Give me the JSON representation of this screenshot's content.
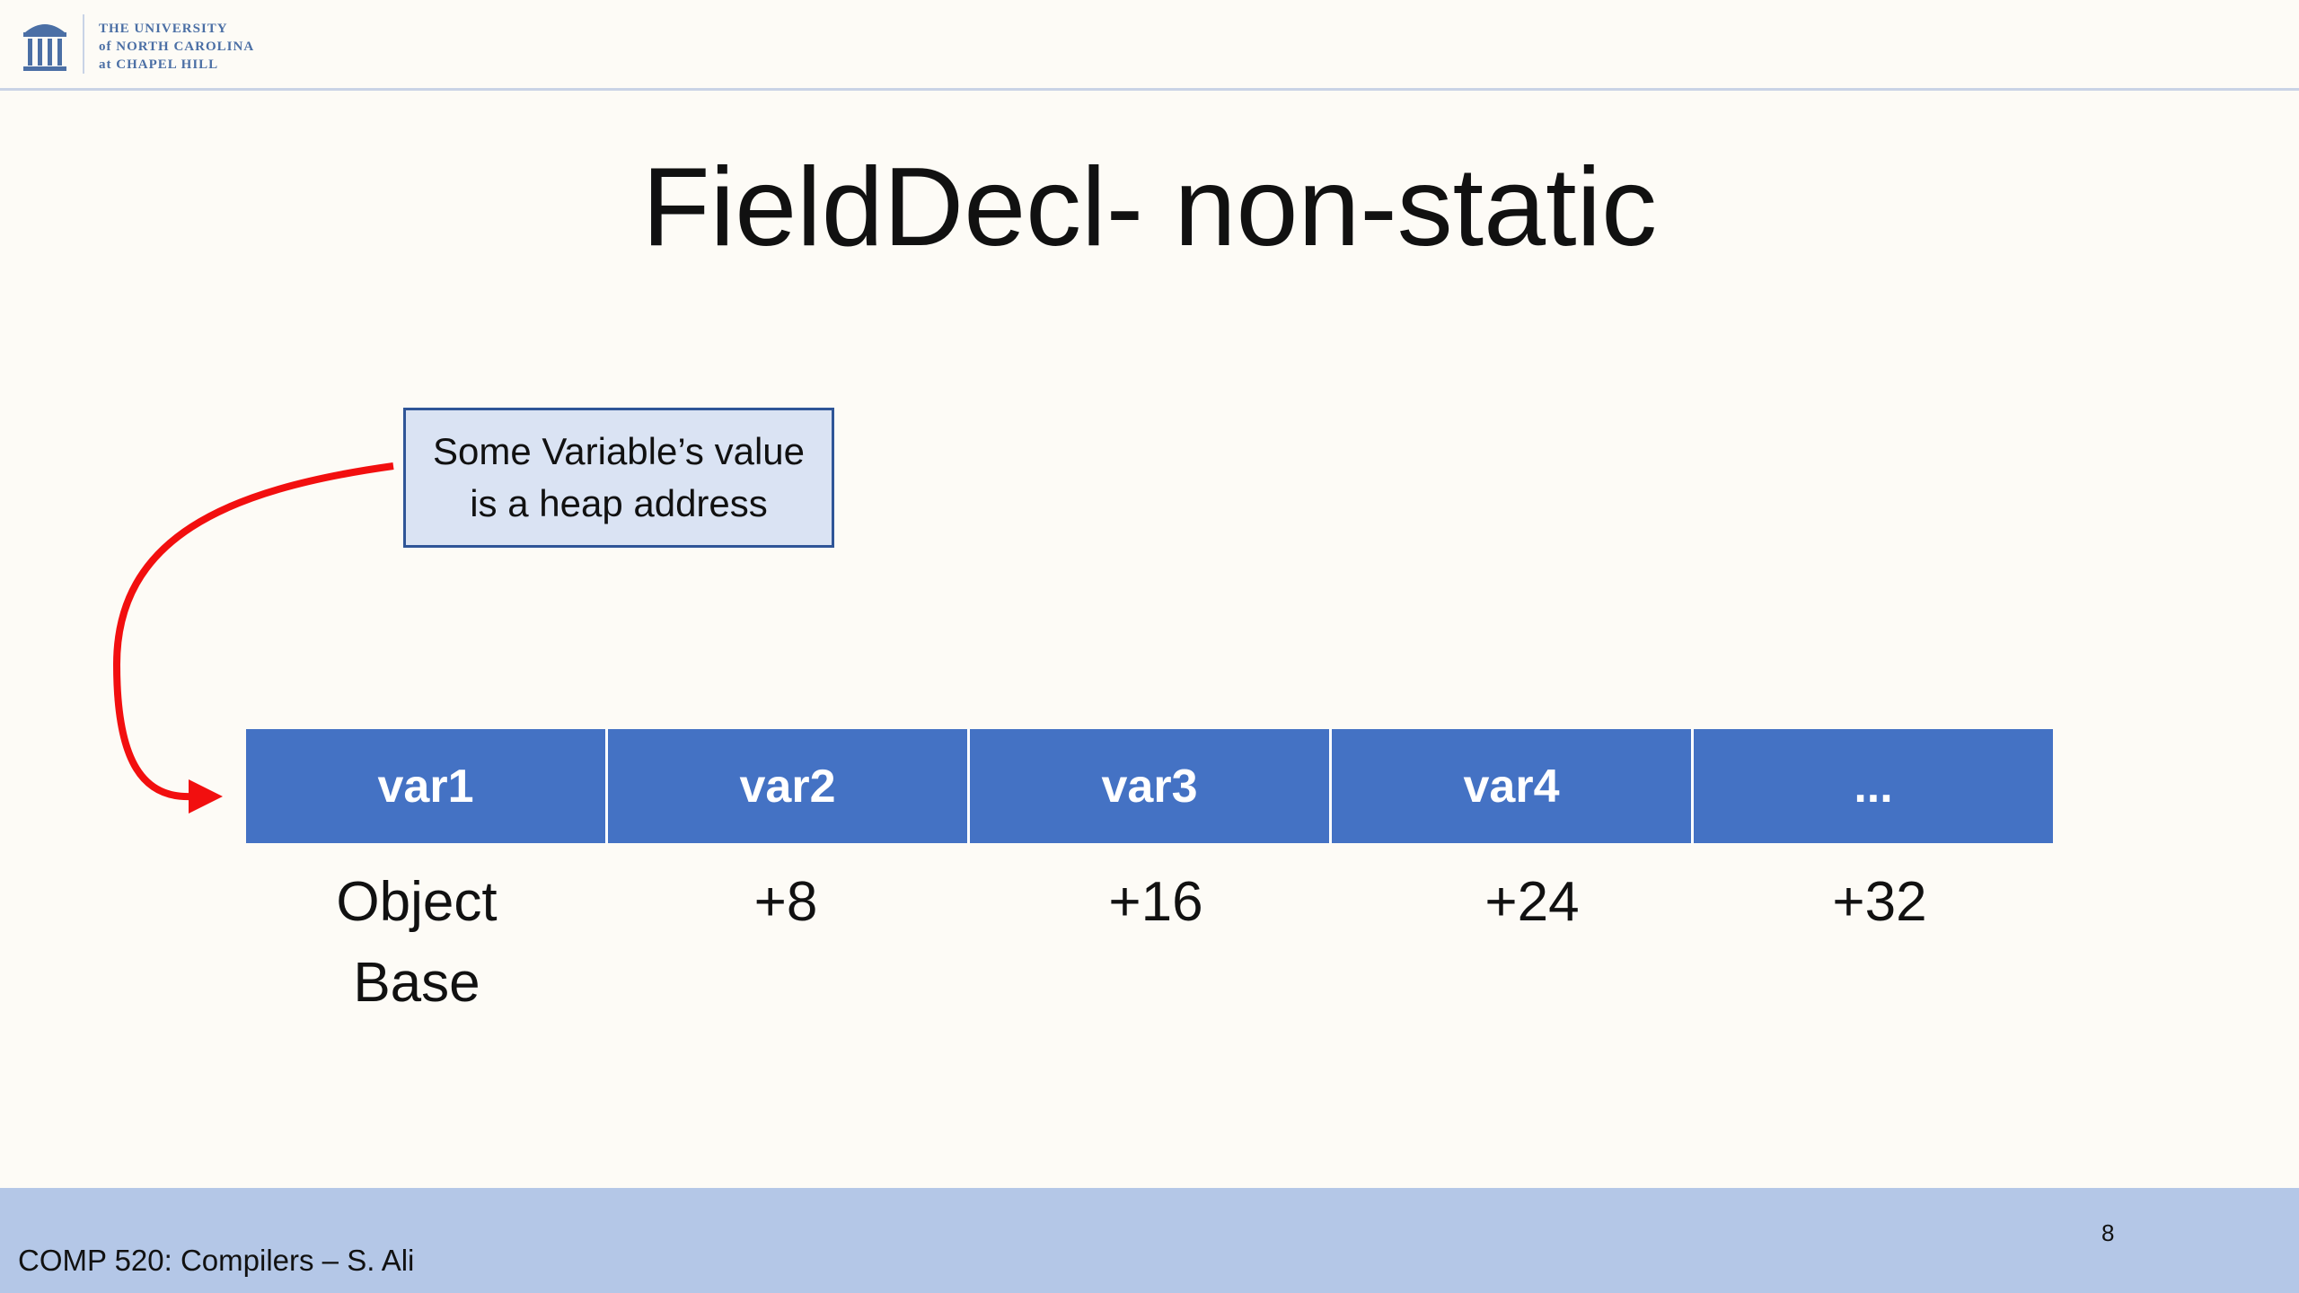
{
  "header": {
    "logo_lines": [
      "THE UNIVERSITY",
      "of NORTH CAROLINA",
      "at CHAPEL HILL"
    ]
  },
  "title": "FieldDecl- non-static",
  "callout": {
    "lines": [
      "Some Variable’s value",
      "is a heap address"
    ]
  },
  "table": {
    "cells": [
      "var1",
      "var2",
      "var3",
      "var4",
      "..."
    ],
    "offsets": [
      [
        "Object",
        "Base"
      ],
      [
        "+8"
      ],
      [
        "+16"
      ],
      [
        "+24"
      ],
      [
        "+32"
      ]
    ]
  },
  "footer": {
    "text": "COMP 520: Compilers – S. Ali",
    "page": "8"
  }
}
